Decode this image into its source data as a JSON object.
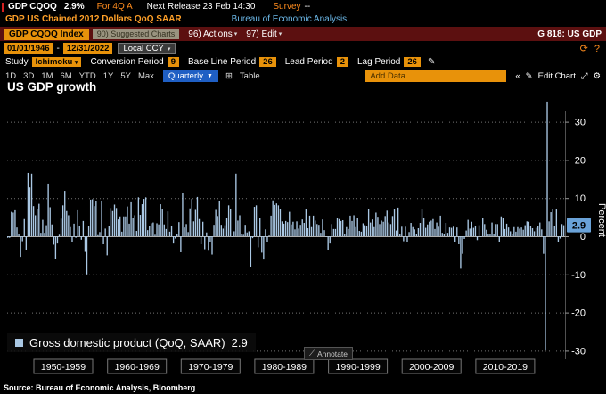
{
  "topbar": {
    "ticker": "GDP CQOQ",
    "value": "2.9%",
    "period": "For 4Q A",
    "next_release": "Next Release 23 Feb 14:30",
    "survey_label": "Survey",
    "survey_value": "--"
  },
  "subheader": {
    "description": "GDP US Chained 2012 Dollars QoQ SAAR",
    "source": "Bureau of Economic Analysis"
  },
  "menubar": {
    "security": "GDP CQOQ Index",
    "suggested": "90) Suggested Charts",
    "actions": "96) Actions",
    "edit": "97) Edit",
    "screen_id": "G 818: US GDP"
  },
  "range_bar": {
    "start_date": "01/01/1946",
    "separator": "-",
    "end_date": "12/31/2022",
    "currency": "Local CCY"
  },
  "study_bar": {
    "study_label": "Study",
    "study_value": "Ichimoku",
    "fields": [
      {
        "label": "Conversion Period",
        "value": "9"
      },
      {
        "label": "Base Line Period",
        "value": "26"
      },
      {
        "label": "Lead Period",
        "value": "2"
      },
      {
        "label": "Lag Period",
        "value": "26"
      }
    ]
  },
  "period_bar": {
    "ranges": [
      "1D",
      "3D",
      "1M",
      "6M",
      "YTD",
      "1Y",
      "5Y",
      "Max"
    ],
    "frequency": "Quarterly",
    "table_label": "Table",
    "add_data_placeholder": "Add Data",
    "edit_chart_label": "Edit Chart"
  },
  "chart": {
    "title": "US GDP growth",
    "legend": "Gross domestic product (QoQ, SAAR)",
    "legend_value": "2.9",
    "last_value": "2.9",
    "annotate_label": "Annotate",
    "y_axis_label": "Percent",
    "x_labels": [
      "1950-1959",
      "1960-1969",
      "1970-1979",
      "1980-1989",
      "1990-1999",
      "2000-2009",
      "2010-2019"
    ]
  },
  "footer": {
    "source": "Source: Bureau of Economic Analysis, Bloomberg"
  },
  "icons": {
    "dropdown": "▾",
    "dropdown_solid": "▼",
    "pencil": "✎",
    "gear": "⚙",
    "expand": "⤢",
    "chevrons_left": "«",
    "table": "⊞",
    "annotate": "⟋",
    "refresh": "⟳",
    "help": "?"
  },
  "colors": {
    "bar": "#aac8e4",
    "badge_bg": "#6aa2d8",
    "amber": "#e8920a",
    "menubar_maroon": "#5c1010",
    "frequency_blue": "#1f5fc4",
    "source_cyan": "#6cb8e8"
  },
  "chart_data": {
    "type": "bar",
    "title": "US GDP growth",
    "xlabel": "",
    "ylabel": "Percent",
    "ylim": [
      -33,
      37
    ],
    "y_ticks": [
      30,
      20,
      10,
      0,
      -10,
      -20,
      -30
    ],
    "grid": "dotted horizontal",
    "legend_position": "bottom-left",
    "series_name": "Gross domestic product (QoQ, SAAR)",
    "frequency": "quarterly",
    "start": "1947-Q2",
    "end": "2022-Q4",
    "last_value": 2.9,
    "values": [
      -0.4,
      -0.4,
      6.4,
      6.2,
      6.8,
      2.3,
      0.5,
      -5.4,
      -1.3,
      4.5,
      -3.5,
      16.6,
      12.8,
      16.4,
      7.9,
      5.5,
      7.1,
      8.5,
      0.9,
      4.3,
      0.9,
      2.9,
      13.8,
      7.6,
      3.1,
      -2.2,
      -5.9,
      -1.9,
      0.4,
      4.6,
      8.1,
      11.9,
      6.6,
      5.5,
      2.4,
      -1.5,
      3.3,
      -0.4,
      6.8,
      2.6,
      -0.9,
      4.0,
      -4.1,
      -10.0,
      2.6,
      9.6,
      9.7,
      7.9,
      9.3,
      0.3,
      1.1,
      9.3,
      -2.1,
      2.0,
      -5.0,
      2.7,
      7.4,
      6.6,
      8.3,
      7.4,
      4.4,
      5.2,
      1.2,
      5.2,
      5.2,
      7.8,
      3.3,
      8.9,
      4.9,
      5.5,
      1.4,
      10.2,
      5.6,
      8.4,
      9.8,
      10.2,
      1.6,
      2.7,
      3.4,
      3.6,
      0.4,
      3.4,
      3.1,
      8.4,
      7.0,
      3.1,
      1.9,
      6.5,
      1.2,
      2.6,
      -1.9,
      -0.6,
      0.6,
      3.7,
      -4.2,
      11.3,
      2.3,
      3.2,
      1.1,
      7.3,
      9.8,
      3.9,
      6.9,
      10.3,
      4.5,
      -2.1,
      3.8,
      -3.4,
      1.0,
      -3.8,
      -1.6,
      -4.8,
      3.0,
      6.9,
      5.3,
      9.3,
      3.0,
      2.0,
      2.9,
      4.8,
      8.1,
      7.2,
      0.0,
      1.3,
      16.4,
      4.1,
      5.5,
      0.7,
      0.4,
      3.0,
      1.0,
      1.3,
      -8.0,
      -0.5,
      7.7,
      8.1,
      -2.9,
      4.9,
      -4.3,
      -6.1,
      1.8,
      -1.5,
      0.2,
      5.4,
      9.4,
      8.2,
      8.6,
      8.1,
      7.1,
      3.9,
      3.3,
      4.0,
      3.7,
      6.4,
      3.1,
      3.8,
      1.8,
      3.9,
      2.0,
      3.0,
      4.4,
      3.5,
      7.0,
      2.1,
      5.4,
      2.4,
      5.4,
      4.1,
      3.2,
      3.0,
      0.9,
      4.4,
      1.6,
      0.0,
      -3.6,
      -1.9,
      3.2,
      1.9,
      1.9,
      4.8,
      4.5,
      4.0,
      4.2,
      0.7,
      2.4,
      1.9,
      5.4,
      4.0,
      5.5,
      2.4,
      4.7,
      1.4,
      1.2,
      3.4,
      2.9,
      2.7,
      7.2,
      3.6,
      4.4,
      2.4,
      6.2,
      5.1,
      3.2,
      4.1,
      3.8,
      5.3,
      6.7,
      3.6,
      3.2,
      5.3,
      7.0,
      1.5,
      7.5,
      0.5,
      2.5,
      -1.3,
      2.5,
      -1.6,
      1.1,
      3.5,
      2.4,
      1.8,
      0.6,
      2.1,
      3.5,
      7.0,
      4.7,
      2.2,
      3.1,
      3.8,
      4.1,
      4.5,
      1.9,
      3.6,
      2.5,
      5.4,
      0.9,
      0.6,
      3.5,
      0.9,
      2.3,
      2.2,
      2.5,
      -1.6,
      2.3,
      -2.1,
      -8.5,
      -4.6,
      -0.7,
      1.5,
      4.3,
      2.0,
      3.8,
      2.2,
      2.6,
      -1.0,
      2.9,
      -0.1,
      4.7,
      3.2,
      1.7,
      0.5,
      0.5,
      3.6,
      0.5,
      3.2,
      3.2,
      -1.4,
      5.2,
      4.9,
      1.9,
      3.3,
      2.3,
      1.3,
      0.6,
      2.4,
      1.2,
      2.4,
      2.0,
      2.3,
      1.7,
      2.9,
      3.9,
      3.8,
      2.7,
      2.1,
      1.3,
      2.2,
      2.7,
      3.6,
      1.8,
      -4.6,
      -29.9,
      35.3,
      3.9,
      6.3,
      7.0,
      2.7,
      7.0,
      -1.6,
      -0.6,
      3.2,
      2.9
    ]
  }
}
